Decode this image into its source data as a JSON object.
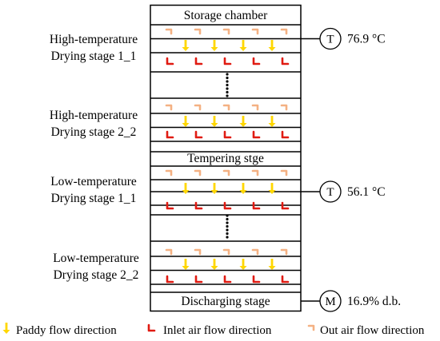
{
  "chamber_labels": {
    "top": "Storage chamber",
    "middle": "Tempering stge",
    "bottom": "Discharging stage"
  },
  "stages": [
    {
      "line1": "High-temperature",
      "line2": "Drying stage 1_1"
    },
    {
      "line1": "High-temperature",
      "line2": "Drying stage 2_2"
    },
    {
      "line1": "Low-temperature",
      "line2": "Drying stage 1_1"
    },
    {
      "line1": "Low-temperature",
      "line2": "Drying stage 2_2"
    }
  ],
  "sensors": [
    {
      "symbol": "T",
      "reading": "76.9 °C"
    },
    {
      "symbol": "T",
      "reading": "56.1 °C"
    },
    {
      "symbol": "M",
      "reading": "16.9% d.b."
    }
  ],
  "legend": {
    "paddy": "Paddy flow direction",
    "inlet": "Inlet air flow direction",
    "outlet": "Out air flow direction"
  },
  "colors": {
    "paddy_arrow": "#ffd700",
    "inlet_arrow": "#e01b12",
    "outlet_arrow": "#f4b183",
    "line": "#000000"
  }
}
